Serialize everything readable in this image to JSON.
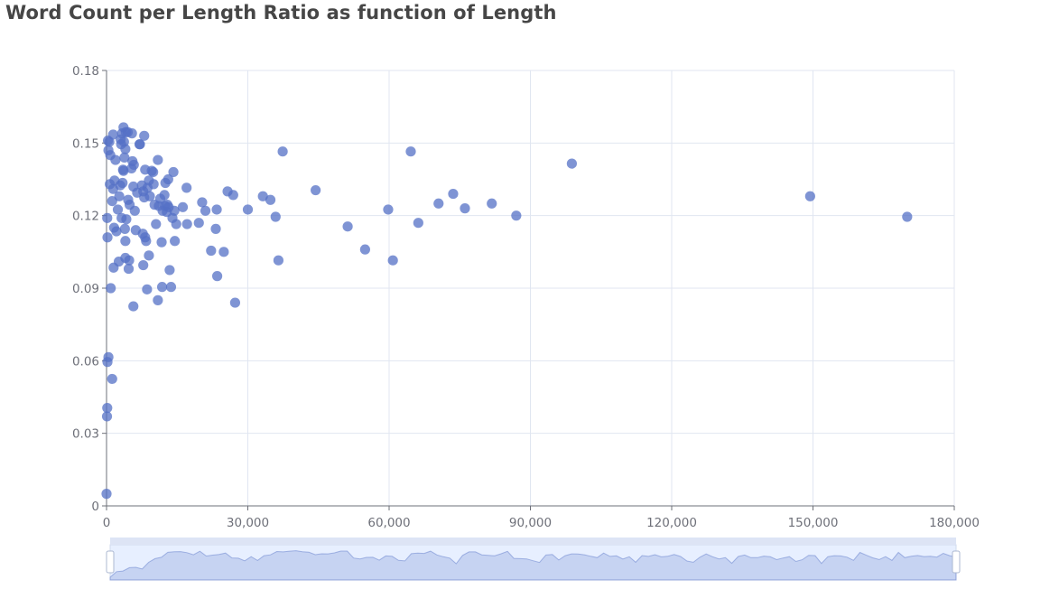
{
  "chart_data": {
    "type": "scatter",
    "title": "Word Count per Length Ratio as function of Length",
    "xlabel": "",
    "ylabel": "",
    "xlim": [
      0,
      180000
    ],
    "ylim": [
      0,
      0.18
    ],
    "x_ticks": [
      "0",
      "30,000",
      "60,000",
      "90,000",
      "120,000",
      "150,000",
      "180,000"
    ],
    "y_ticks": [
      "0",
      "0.03",
      "0.06",
      "0.09",
      "0.12",
      "0.15",
      "0.18"
    ],
    "grid": true,
    "point_color": "#5470c6",
    "has_data_zoom_slider": true,
    "points": [
      [
        0,
        0.005
      ],
      [
        100,
        0.037
      ],
      [
        150,
        0.0405
      ],
      [
        200,
        0.0595
      ],
      [
        400,
        0.0615
      ],
      [
        1200,
        0.0525
      ],
      [
        900,
        0.09
      ],
      [
        200,
        0.111
      ],
      [
        150,
        0.119
      ],
      [
        400,
        0.147
      ],
      [
        600,
        0.1505
      ],
      [
        300,
        0.151
      ],
      [
        800,
        0.145
      ],
      [
        700,
        0.133
      ],
      [
        1400,
        0.1535
      ],
      [
        1200,
        0.126
      ],
      [
        1400,
        0.131
      ],
      [
        1700,
        0.1345
      ],
      [
        1900,
        0.143
      ],
      [
        1600,
        0.115
      ],
      [
        2100,
        0.1135
      ],
      [
        1500,
        0.0985
      ],
      [
        2400,
        0.1225
      ],
      [
        2600,
        0.101
      ],
      [
        2700,
        0.128
      ],
      [
        2900,
        0.1325
      ],
      [
        3000,
        0.1515
      ],
      [
        3100,
        0.1495
      ],
      [
        3300,
        0.154
      ],
      [
        3600,
        0.1565
      ],
      [
        3700,
        0.1505
      ],
      [
        4000,
        0.1475
      ],
      [
        3400,
        0.1335
      ],
      [
        3500,
        0.139
      ],
      [
        3600,
        0.1385
      ],
      [
        3800,
        0.144
      ],
      [
        4100,
        0.1545
      ],
      [
        4500,
        0.1545
      ],
      [
        3900,
        0.1145
      ],
      [
        4000,
        0.1095
      ],
      [
        4200,
        0.1185
      ],
      [
        3200,
        0.119
      ],
      [
        4000,
        0.1025
      ],
      [
        4600,
        0.1265
      ],
      [
        4900,
        0.1245
      ],
      [
        4800,
        0.1015
      ],
      [
        4700,
        0.098
      ],
      [
        5300,
        0.1395
      ],
      [
        5500,
        0.1425
      ],
      [
        5800,
        0.141
      ],
      [
        5400,
        0.154
      ],
      [
        5700,
        0.132
      ],
      [
        6000,
        0.122
      ],
      [
        6200,
        0.114
      ],
      [
        5700,
        0.0825
      ],
      [
        6500,
        0.1295
      ],
      [
        7000,
        0.1495
      ],
      [
        7100,
        0.1495
      ],
      [
        7500,
        0.1325
      ],
      [
        7800,
        0.13
      ],
      [
        8000,
        0.1275
      ],
      [
        8200,
        0.139
      ],
      [
        8000,
        0.153
      ],
      [
        7700,
        0.1125
      ],
      [
        8200,
        0.111
      ],
      [
        8400,
        0.1095
      ],
      [
        7800,
        0.0995
      ],
      [
        8600,
        0.0895
      ],
      [
        8700,
        0.1315
      ],
      [
        9000,
        0.1345
      ],
      [
        9000,
        0.1035
      ],
      [
        9200,
        0.128
      ],
      [
        9600,
        0.1385
      ],
      [
        9900,
        0.138
      ],
      [
        10000,
        0.133
      ],
      [
        10200,
        0.1245
      ],
      [
        10500,
        0.1165
      ],
      [
        10900,
        0.143
      ],
      [
        11100,
        0.124
      ],
      [
        11400,
        0.127
      ],
      [
        11700,
        0.109
      ],
      [
        11900,
        0.122
      ],
      [
        11800,
        0.0905
      ],
      [
        12300,
        0.1285
      ],
      [
        12400,
        0.124
      ],
      [
        12500,
        0.1335
      ],
      [
        12800,
        0.1215
      ],
      [
        12900,
        0.1245
      ],
      [
        13100,
        0.135
      ],
      [
        13200,
        0.1235
      ],
      [
        13400,
        0.0975
      ],
      [
        13700,
        0.0905
      ],
      [
        14000,
        0.119
      ],
      [
        14200,
        0.138
      ],
      [
        14400,
        0.122
      ],
      [
        14500,
        0.1095
      ],
      [
        14800,
        0.1165
      ],
      [
        10900,
        0.085
      ],
      [
        16200,
        0.1235
      ],
      [
        17000,
        0.1315
      ],
      [
        17100,
        0.1165
      ],
      [
        19600,
        0.117
      ],
      [
        20300,
        0.1255
      ],
      [
        21000,
        0.122
      ],
      [
        22200,
        0.1055
      ],
      [
        23200,
        0.1145
      ],
      [
        23400,
        0.1225
      ],
      [
        23500,
        0.095
      ],
      [
        24900,
        0.105
      ],
      [
        25700,
        0.13
      ],
      [
        26900,
        0.1285
      ],
      [
        27300,
        0.084
      ],
      [
        30000,
        0.1225
      ],
      [
        33200,
        0.128
      ],
      [
        34800,
        0.1265
      ],
      [
        35900,
        0.1195
      ],
      [
        36500,
        0.1015
      ],
      [
        37400,
        0.1465
      ],
      [
        44400,
        0.1305
      ],
      [
        51200,
        0.1155
      ],
      [
        54900,
        0.106
      ],
      [
        59800,
        0.1225
      ],
      [
        60800,
        0.1015
      ],
      [
        64600,
        0.1465
      ],
      [
        66200,
        0.117
      ],
      [
        70500,
        0.125
      ],
      [
        73600,
        0.129
      ],
      [
        76100,
        0.123
      ],
      [
        81800,
        0.125
      ],
      [
        87000,
        0.12
      ],
      [
        98800,
        0.1415
      ],
      [
        149400,
        0.128
      ],
      [
        170000,
        0.1195
      ]
    ]
  }
}
